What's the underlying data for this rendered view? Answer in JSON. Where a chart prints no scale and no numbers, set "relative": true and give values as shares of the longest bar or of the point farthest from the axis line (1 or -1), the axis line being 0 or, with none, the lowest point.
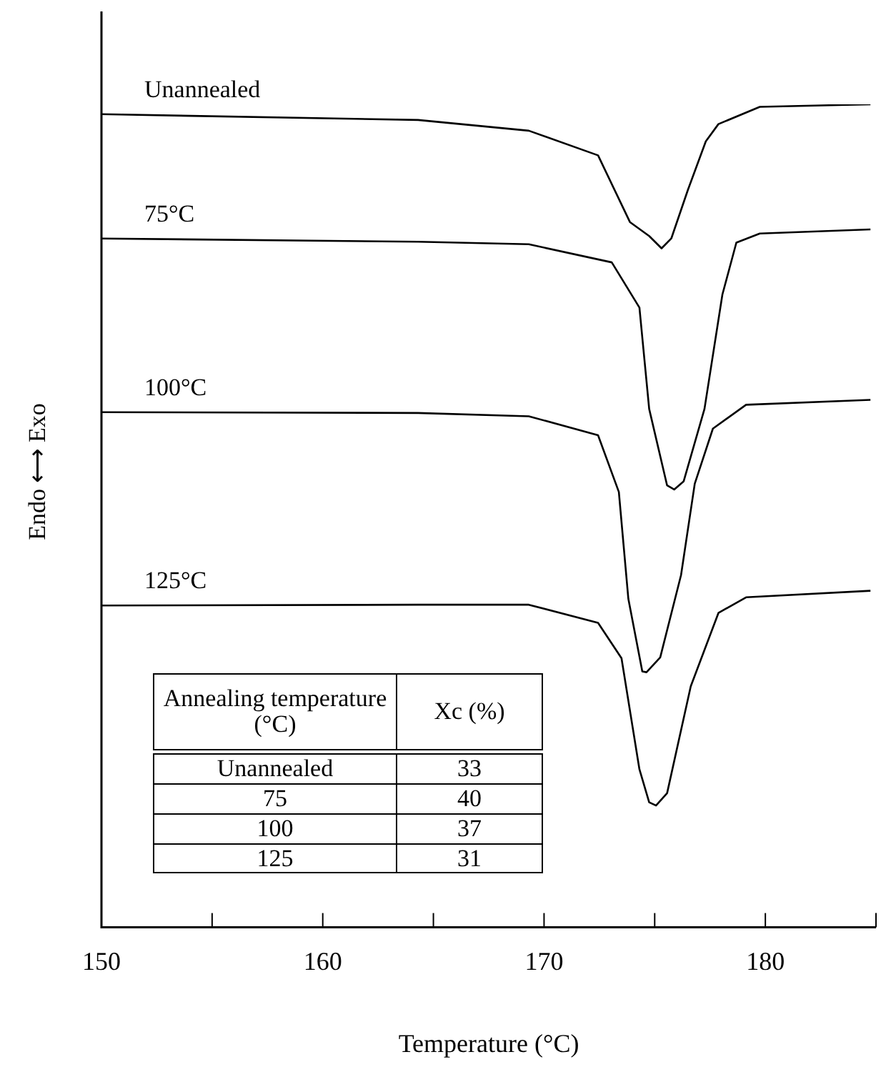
{
  "chart_data": {
    "type": "line",
    "relative": true,
    "xlabel": "Temperature (°C)",
    "ylabel": "Endo ⟷ Exo",
    "xlim": [
      150,
      185
    ],
    "xticks": [
      150,
      {
        "value": 155,
        "label": null
      },
      160,
      {
        "value": 165,
        "label": null
      },
      170,
      {
        "value": 175,
        "label": null
      },
      180,
      {
        "value": 185,
        "label": null
      }
    ],
    "grid": false,
    "legend": false,
    "marker": "none",
    "line_style": "solid",
    "series": [
      {
        "name": "Unannealed",
        "color": "#000000",
        "x": [
          150,
          164.31,
          169.31,
          172.44,
          173.88,
          174.75,
          175.31,
          175.75,
          176.5,
          177.31,
          177.88,
          179.75,
          184.75
        ],
        "values": [
          0.988,
          0.981,
          0.968,
          0.938,
          0.857,
          0.84,
          0.825,
          0.837,
          0.896,
          0.955,
          0.976,
          0.997,
          1
        ]
      },
      {
        "name": "75°C",
        "color": "#000000",
        "x": [
          150,
          164.31,
          169.31,
          173.06,
          174.31,
          174.75,
          175.56,
          175.88,
          176.31,
          177.25,
          178.06,
          178.69,
          179.75,
          184.75
        ],
        "values": [
          0.837,
          0.833,
          0.83,
          0.808,
          0.753,
          0.63,
          0.537,
          0.532,
          0.542,
          0.63,
          0.769,
          0.832,
          0.843,
          0.848
        ]
      },
      {
        "name": "100°C",
        "color": "#000000",
        "x": [
          150,
          164.31,
          169.31,
          172.44,
          173.38,
          173.81,
          174.44,
          174.63,
          175.25,
          176.19,
          176.81,
          177.63,
          179.13,
          184.75
        ],
        "values": [
          0.626,
          0.625,
          0.621,
          0.598,
          0.529,
          0.399,
          0.311,
          0.31,
          0.328,
          0.428,
          0.539,
          0.606,
          0.635,
          0.641
        ]
      },
      {
        "name": "125°C",
        "color": "#000000",
        "x": [
          150,
          164.31,
          169.31,
          172.44,
          173.5,
          174.31,
          174.75,
          175.06,
          175.56,
          176.63,
          177.88,
          179.13,
          184.75
        ],
        "values": [
          0.391,
          0.392,
          0.392,
          0.37,
          0.327,
          0.192,
          0.152,
          0.148,
          0.163,
          0.293,
          0.382,
          0.401,
          0.409
        ]
      }
    ],
    "annotations": [
      "Annealing temperature (°C)",
      "Xc (%)",
      "Unannealed",
      "33",
      "75",
      "40",
      "100",
      "37",
      "125",
      "31"
    ]
  }
}
